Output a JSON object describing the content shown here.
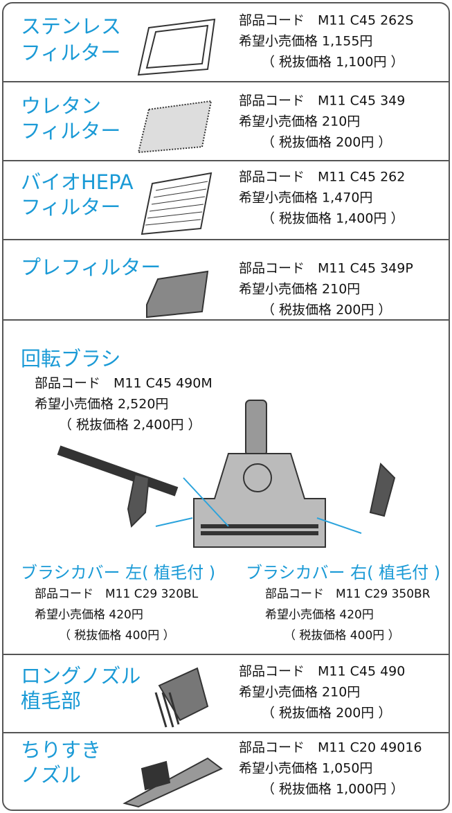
{
  "sections": [
    {
      "name": [
        "ステンレス",
        "フィルター"
      ],
      "code": "部品コード　M11 C45 262S",
      "price": "希望小売価格 1,155円",
      "tax": "（ 税抜価格 1,100円 ）"
    },
    {
      "name": [
        "ウレタン",
        "フィルター"
      ],
      "code": "部品コード　M11 C45 349",
      "price": "希望小売価格 210円",
      "tax": "（ 税抜価格 200円 ）"
    },
    {
      "name": [
        "バイオHEPA",
        "フィルター"
      ],
      "code": "部品コード　M11 C45 262",
      "price": "希望小売価格 1,470円",
      "tax": "（ 税抜価格 1,400円 ）"
    },
    {
      "name": [
        "プレフィルター"
      ],
      "code": "部品コード　M11 C45 349P",
      "price": "希望小売価格 210円",
      "tax": "（ 税抜価格 200円 ）"
    },
    {
      "name": [
        "回転ブラシ"
      ],
      "code": "部品コード　M11 C45 490M",
      "price": "希望小売価格 2,520円",
      "tax": "（ 税抜価格 2,400円 ）"
    },
    {
      "name": [
        "ブラシカバー 左( 植毛付 )"
      ],
      "code": "部品コード　M11 C29 320BL",
      "price": "希望小売価格 420円",
      "tax": "（ 税抜価格 400円 ）"
    },
    {
      "name": [
        "ブラシカバー 右( 植毛付 )"
      ],
      "code": "部品コード　M11 C29 350BR",
      "price": "希望小売価格 420円",
      "tax": "（ 税抜価格 400円 ）"
    },
    {
      "name": [
        "ロングノズル",
        "植毛部"
      ],
      "code": "部品コード　M11 C45 490",
      "price": "希望小売価格 210円",
      "tax": "（ 税抜価格 200円 ）"
    },
    {
      "name": [
        "ちりすき",
        "ノズル"
      ],
      "code": "部品コード　M11 C20 49016",
      "price": "希望小売価格 1,050円",
      "tax": "（ 税抜価格 1,000円 ）"
    }
  ]
}
